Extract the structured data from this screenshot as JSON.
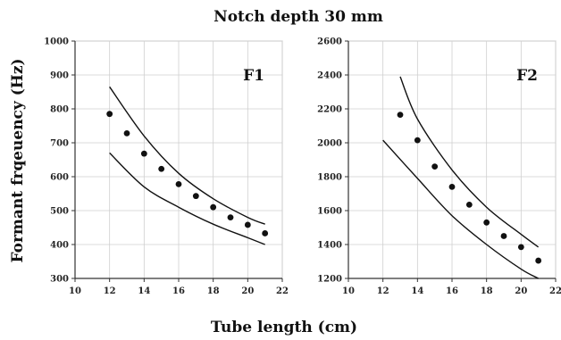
{
  "figure": {
    "title": "Notch depth 30 mm",
    "xlabel": "Tube length (cm)",
    "ylabel": "Formant frqeuency (Hz)"
  },
  "chart_data": [
    {
      "type": "scatter",
      "panel_label": "F1",
      "xlim": [
        10,
        22
      ],
      "ylim": [
        300,
        1000
      ],
      "xticks": [
        10,
        12,
        14,
        16,
        18,
        20,
        22
      ],
      "yticks": [
        300,
        400,
        500,
        600,
        700,
        800,
        900,
        1000
      ],
      "grid": true,
      "points": [
        {
          "x": 12,
          "y": 785
        },
        {
          "x": 13,
          "y": 728
        },
        {
          "x": 14,
          "y": 668
        },
        {
          "x": 15,
          "y": 623
        },
        {
          "x": 16,
          "y": 578
        },
        {
          "x": 17,
          "y": 543
        },
        {
          "x": 18,
          "y": 510
        },
        {
          "x": 19,
          "y": 480
        },
        {
          "x": 20,
          "y": 458
        },
        {
          "x": 21,
          "y": 433
        }
      ],
      "lines": [
        {
          "x": [
            12,
            14,
            16,
            18,
            20,
            21
          ],
          "y": [
            865,
            720,
            610,
            535,
            480,
            460
          ]
        },
        {
          "x": [
            12,
            14,
            16,
            18,
            20,
            21
          ],
          "y": [
            670,
            570,
            510,
            460,
            420,
            400
          ]
        }
      ]
    },
    {
      "type": "scatter",
      "panel_label": "F2",
      "xlim": [
        10,
        22
      ],
      "ylim": [
        1200,
        2600
      ],
      "xticks": [
        10,
        12,
        14,
        16,
        18,
        20,
        22
      ],
      "yticks": [
        1200,
        1400,
        1600,
        1800,
        2000,
        2200,
        2400,
        2600
      ],
      "grid": true,
      "points": [
        {
          "x": 13,
          "y": 2165
        },
        {
          "x": 14,
          "y": 2015
        },
        {
          "x": 15,
          "y": 1860
        },
        {
          "x": 16,
          "y": 1740
        },
        {
          "x": 17,
          "y": 1635
        },
        {
          "x": 18,
          "y": 1530
        },
        {
          "x": 19,
          "y": 1450
        },
        {
          "x": 20,
          "y": 1385
        },
        {
          "x": 21,
          "y": 1305
        }
      ],
      "lines": [
        {
          "x": [
            13,
            14,
            16,
            18,
            20,
            21
          ],
          "y": [
            2390,
            2140,
            1840,
            1620,
            1460,
            1385
          ]
        },
        {
          "x": [
            12,
            14,
            16,
            18,
            20,
            21
          ],
          "y": [
            2015,
            1790,
            1570,
            1400,
            1255,
            1200
          ]
        }
      ]
    }
  ]
}
